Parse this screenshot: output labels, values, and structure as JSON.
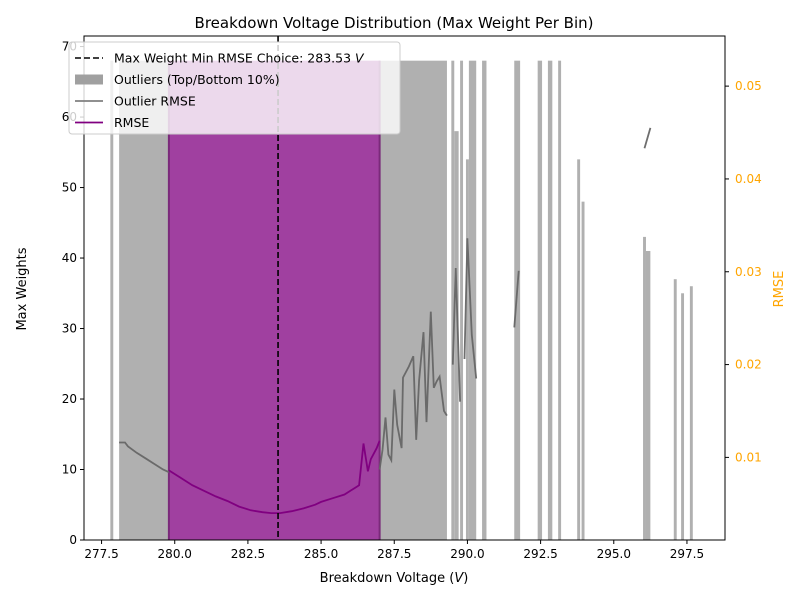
{
  "chart_data": {
    "type": "bar",
    "title": "Breakdown Voltage Distribution (Max Weight Per Bin)",
    "xlabel": "Breakdown Voltage ($V$)",
    "xlabel_main": "Breakdown Voltage (",
    "xlabel_unit": "V",
    "xlabel_close": ")",
    "ylabel": "Max Weights",
    "y2label": "RMSE",
    "xlim": [
      276.9,
      298.8
    ],
    "ylim": [
      0,
      71.5
    ],
    "y2lim": [
      0.0011,
      0.0554
    ],
    "xticks": [
      "277.5",
      "280.0",
      "282.5",
      "285.0",
      "287.5",
      "290.0",
      "292.5",
      "295.0",
      "297.5"
    ],
    "xtick_values": [
      277.5,
      280.0,
      282.5,
      285.0,
      287.5,
      290.0,
      292.5,
      295.0,
      297.5
    ],
    "yticks": [
      "0",
      "10",
      "20",
      "30",
      "40",
      "50",
      "60",
      "70"
    ],
    "ytick_values": [
      0,
      10,
      20,
      30,
      40,
      50,
      60,
      70
    ],
    "y2ticks": [
      "0.01",
      "0.02",
      "0.03",
      "0.04",
      "0.05"
    ],
    "y2tick_values": [
      0.01,
      0.02,
      0.03,
      0.04,
      0.05
    ],
    "legend_position": "top-left",
    "legend": [
      {
        "label": "Max Weight Min RMSE Choice: 283.53 ",
        "label_unit": "V",
        "kind": "dashed-line",
        "color": "#000000"
      },
      {
        "label": "Outliers (Top/Bottom 10%)",
        "kind": "patch",
        "color": "#a0a0a0"
      },
      {
        "label": "Outlier RMSE",
        "kind": "line",
        "color": "#808080"
      },
      {
        "label": "RMSE",
        "kind": "line",
        "color": "#800080"
      }
    ],
    "choice_voltage": 283.53,
    "inlier_region": {
      "x_start": 279.8,
      "x_end": 287.0,
      "max_weight": 68,
      "color": "#a040a0"
    },
    "outlier_bars": [
      {
        "x0": 277.8,
        "x1": 277.9,
        "value": 68
      },
      {
        "x0": 278.1,
        "x1": 279.8,
        "value": 68
      },
      {
        "x0": 287.0,
        "x1": 289.3,
        "value": 68
      },
      {
        "x0": 289.45,
        "x1": 289.55,
        "value": 68
      },
      {
        "x0": 289.55,
        "x1": 289.7,
        "value": 58
      },
      {
        "x0": 289.75,
        "x1": 289.85,
        "value": 68
      },
      {
        "x0": 289.95,
        "x1": 290.05,
        "value": 54
      },
      {
        "x0": 290.05,
        "x1": 290.3,
        "value": 68
      },
      {
        "x0": 290.5,
        "x1": 290.65,
        "value": 68
      },
      {
        "x0": 291.6,
        "x1": 291.8,
        "value": 68
      },
      {
        "x0": 292.4,
        "x1": 292.55,
        "value": 68
      },
      {
        "x0": 292.75,
        "x1": 292.9,
        "value": 68
      },
      {
        "x0": 293.1,
        "x1": 293.2,
        "value": 68
      },
      {
        "x0": 293.75,
        "x1": 293.85,
        "value": 54
      },
      {
        "x0": 293.9,
        "x1": 294.0,
        "value": 48
      },
      {
        "x0": 296.0,
        "x1": 296.1,
        "value": 43
      },
      {
        "x0": 296.1,
        "x1": 296.25,
        "value": 41
      },
      {
        "x0": 297.05,
        "x1": 297.15,
        "value": 37
      },
      {
        "x0": 297.3,
        "x1": 297.4,
        "value": 35
      },
      {
        "x0": 297.6,
        "x1": 297.7,
        "value": 36
      }
    ],
    "series": [
      {
        "name": "RMSE",
        "color": "#800080",
        "x": [
          279.8,
          280.2,
          280.6,
          281.0,
          281.4,
          281.8,
          282.2,
          282.6,
          283.0,
          283.3,
          283.6,
          284.0,
          284.4,
          284.8,
          285.0,
          285.4,
          285.8,
          286.0,
          286.2,
          286.3,
          286.45,
          286.6,
          286.7,
          286.9,
          287.0
        ],
        "y": [
          0.0086,
          0.0078,
          0.007,
          0.0064,
          0.0058,
          0.0053,
          0.0047,
          0.0043,
          0.0041,
          0.004,
          0.004,
          0.0042,
          0.0045,
          0.0049,
          0.0052,
          0.0056,
          0.006,
          0.0064,
          0.0068,
          0.007,
          0.0115,
          0.0085,
          0.0098,
          0.011,
          0.0118
        ]
      },
      {
        "name": "Outlier RMSE",
        "color": "#808080",
        "segments": [
          {
            "x": [
              278.1,
              278.3,
              278.4,
              278.7,
              279.0,
              279.3,
              279.6,
              279.8
            ],
            "y": [
              0.0116,
              0.0116,
              0.0112,
              0.0105,
              0.0099,
              0.0093,
              0.0087,
              0.0084
            ]
          },
          {
            "x": [
              287.0,
              287.1,
              287.2,
              287.3,
              287.4,
              287.5,
              287.6,
              287.75,
              287.8,
              288.0,
              288.15,
              288.25,
              288.35,
              288.5,
              288.6,
              288.75,
              288.85,
              288.95,
              289.05,
              289.2,
              289.3
            ],
            "y": [
              0.0087,
              0.0108,
              0.0143,
              0.0103,
              0.0097,
              0.0173,
              0.0135,
              0.011,
              0.0186,
              0.0198,
              0.0209,
              0.0119,
              0.0183,
              0.0235,
              0.0138,
              0.0257,
              0.0175,
              0.0182,
              0.0187,
              0.015,
              0.0145
            ]
          },
          {
            "x": [
              289.5,
              289.6,
              289.75
            ],
            "y": [
              0.02,
              0.0304,
              0.016
            ]
          },
          {
            "x": [
              289.9,
              290.0,
              290.15,
              290.3
            ],
            "y": [
              0.0206,
              0.0336,
              0.0232,
              0.0185
            ]
          },
          {
            "x": [
              291.6,
              291.75
            ],
            "y": [
              0.024,
              0.0301
            ]
          },
          {
            "x": [
              296.05,
              296.25
            ],
            "y": [
              0.0433,
              0.0455
            ]
          }
        ]
      }
    ]
  }
}
